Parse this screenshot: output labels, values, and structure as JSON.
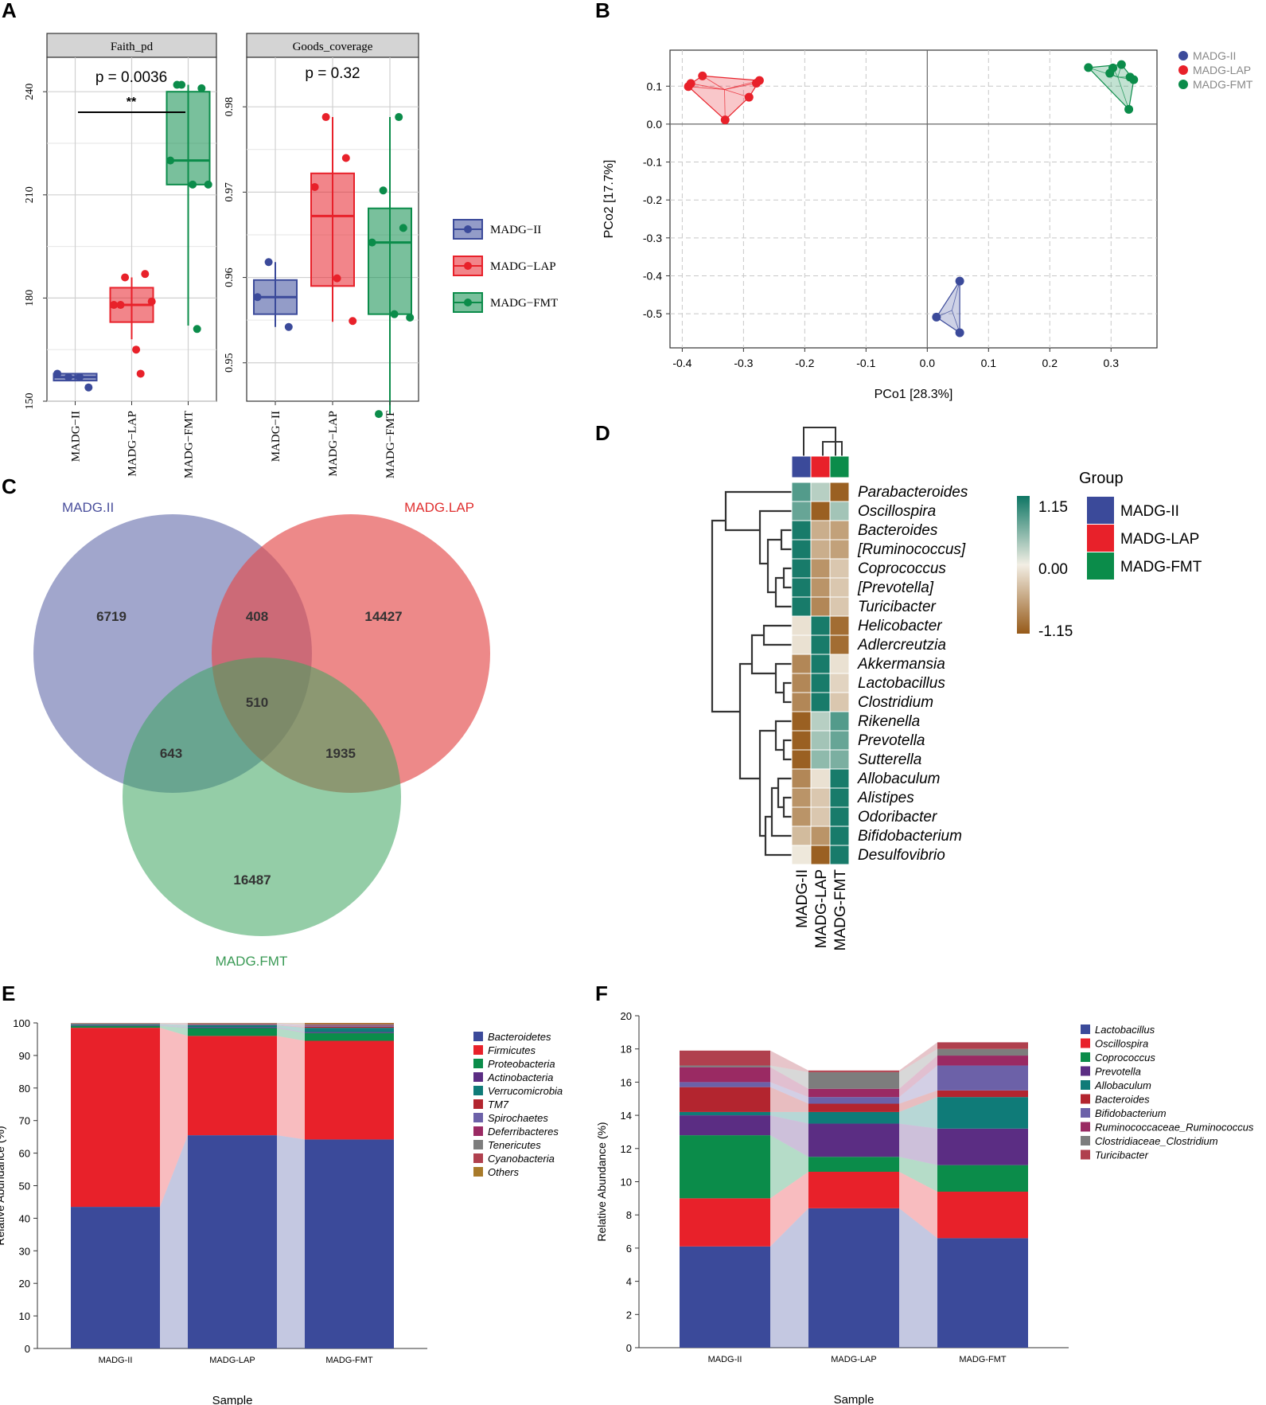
{
  "panels": {
    "A": "A",
    "B": "B",
    "C": "C",
    "D": "D",
    "E": "E",
    "F": "F"
  },
  "colors": {
    "II": "#3b4a9a",
    "LAP": "#e8212a",
    "FMT": "#0b8c4a"
  },
  "chart_data": [
    {
      "id": "A1",
      "type": "box",
      "title": "Faith_pd",
      "categories": [
        "MADG−II",
        "MADG−LAP",
        "MADG−FMT"
      ],
      "ylim": [
        150,
        250
      ],
      "yticks": [
        "150",
        "180",
        "210",
        "240"
      ],
      "yticks_values": [
        150,
        180,
        210,
        240
      ],
      "pvalue": "p = 0.0036",
      "signif": "**",
      "boxes": [
        {
          "q1": 156,
          "median": 157,
          "q3": 158,
          "min": 156,
          "max": 158,
          "points": [
            157,
            154,
            158,
            157
          ]
        },
        {
          "q1": 173,
          "median": 178,
          "q3": 183,
          "min": 168,
          "max": 186,
          "points": [
            186,
            187,
            178,
            165,
            179,
            178,
            158
          ]
        },
        {
          "q1": 213,
          "median": 220,
          "q3": 240,
          "min": 172,
          "max": 242,
          "points": [
            242,
            241,
            220,
            213,
            213,
            242,
            171
          ]
        }
      ]
    },
    {
      "id": "A2",
      "type": "box",
      "title": "Goods_coverage",
      "categories": [
        "MADG−II",
        "MADG−LAP",
        "MADG−FMT"
      ],
      "ylim": [
        0.9455,
        0.9858
      ],
      "yticks": [
        "0.95",
        "0.96",
        "0.97",
        "0.98"
      ],
      "yticks_values": [
        0.95,
        0.96,
        0.97,
        0.98
      ],
      "pvalue": "p = 0.32",
      "boxes": [
        {
          "q1": 0.9557,
          "median": 0.9577,
          "q3": 0.9597,
          "min": 0.9542,
          "max": 0.9618,
          "points": [
            0.9618,
            0.9542,
            0.9577
          ]
        },
        {
          "q1": 0.959,
          "median": 0.9672,
          "q3": 0.9722,
          "min": 0.9548,
          "max": 0.9788,
          "points": [
            0.9788,
            0.974,
            0.9706,
            0.9599,
            0.9549
          ]
        },
        {
          "q1": 0.9557,
          "median": 0.9641,
          "q3": 0.9681,
          "min": 0.944,
          "max": 0.9788,
          "points": [
            0.9702,
            0.9658,
            0.9641,
            0.9557,
            0.9553,
            0.944,
            0.9788
          ]
        }
      ]
    },
    {
      "id": "B",
      "type": "scatter",
      "xlabel": "PCo1 [28.3%]",
      "ylabel": "PCo2 [17.7%]",
      "xlim": [
        -0.42,
        0.375
      ],
      "ylim": [
        -0.59,
        0.195
      ],
      "xticks": [
        "-0.4",
        "-0.3",
        "-0.2",
        "-0.1",
        "0.0",
        "0.1",
        "0.2",
        "0.3"
      ],
      "xticks_values": [
        -0.4,
        -0.3,
        -0.2,
        -0.1,
        0.0,
        0.1,
        0.2,
        0.3
      ],
      "yticks": [
        "0.1",
        "0.0",
        "-0.1",
        "-0.2",
        "-0.3",
        "-0.4",
        "-0.5"
      ],
      "yticks_values": [
        0.1,
        0.0,
        -0.1,
        -0.2,
        -0.3,
        -0.4,
        -0.5
      ],
      "legend": [
        "MADG-II",
        "MADG-LAP",
        "MADG-FMT"
      ],
      "series": [
        {
          "name": "MADG-II",
          "points": [
            [
              0.053,
              -0.414
            ],
            [
              0.015,
              -0.509
            ],
            [
              0.053,
              -0.55
            ]
          ]
        },
        {
          "name": "MADG-LAP",
          "points": [
            [
              -0.39,
              0.099
            ],
            [
              -0.386,
              0.107
            ],
            [
              -0.367,
              0.127
            ],
            [
              -0.33,
              0.011
            ],
            [
              -0.279,
              0.108
            ],
            [
              -0.274,
              0.115
            ],
            [
              -0.291,
              0.071
            ]
          ]
        },
        {
          "name": "MADG-FMT",
          "points": [
            [
              0.263,
              0.149
            ],
            [
              0.298,
              0.134
            ],
            [
              0.303,
              0.148
            ],
            [
              0.317,
              0.157
            ],
            [
              0.331,
              0.124
            ],
            [
              0.337,
              0.117
            ],
            [
              0.329,
              0.039
            ]
          ]
        }
      ]
    },
    {
      "id": "C",
      "type": "venn",
      "sets": [
        "MADG.II",
        "MADG.LAP",
        "MADG.FMT"
      ],
      "values": {
        "only_II": "6719",
        "only_LAP": "14427",
        "only_FMT": "16487",
        "II_LAP": "408",
        "II_FMT": "643",
        "LAP_FMT": "1935",
        "all": "510"
      }
    },
    {
      "id": "D",
      "type": "heatmap",
      "columns": [
        "MADG-II",
        "MADG-LAP",
        "MADG-FMT"
      ],
      "rows": [
        "Parabacteroides",
        "Oscillospira",
        "Bacteroides",
        "[Ruminococcus]",
        "Coprococcus",
        "[Prevotella]",
        "Turicibacter",
        "Helicobacter",
        "Adlercreutzia",
        "Akkermansia",
        "Lactobacillus",
        "Clostridium",
        "Rikenella",
        "Prevotella",
        "Sutterella",
        "Allobaculum",
        "Alistipes",
        "Odoribacter",
        "Bifidobacterium",
        "Desulfovibrio"
      ],
      "values": [
        [
          0.8,
          0.3,
          -1.1
        ],
        [
          0.7,
          -1.1,
          0.4
        ],
        [
          1.1,
          -0.5,
          -0.6
        ],
        [
          1.1,
          -0.5,
          -0.6
        ],
        [
          1.1,
          -0.7,
          -0.3
        ],
        [
          1.1,
          -0.7,
          -0.3
        ],
        [
          1.1,
          -0.8,
          -0.3
        ],
        [
          -0.1,
          1.1,
          -1.0
        ],
        [
          -0.1,
          1.1,
          -1.0
        ],
        [
          -0.8,
          1.1,
          -0.1
        ],
        [
          -0.8,
          1.1,
          -0.2
        ],
        [
          -0.8,
          1.1,
          -0.3
        ],
        [
          -1.1,
          0.3,
          0.8
        ],
        [
          -1.1,
          0.4,
          0.7
        ],
        [
          -1.1,
          0.5,
          0.6
        ],
        [
          -0.8,
          -0.1,
          1.1
        ],
        [
          -0.7,
          -0.3,
          1.1
        ],
        [
          -0.7,
          -0.3,
          1.1
        ],
        [
          -0.4,
          -0.7,
          1.1
        ],
        [
          -0.05,
          -1.1,
          1.1
        ]
      ],
      "legend_title": "Group",
      "scale_labels": [
        "1.15",
        "0.00",
        "-1.15"
      ],
      "scale_values": [
        1.15,
        0.0,
        -1.15
      ]
    },
    {
      "id": "E",
      "type": "stacked-bar",
      "xlabel": "Sample",
      "ylabel": "Relative Abundance (%)",
      "categories": [
        "MADG-II",
        "MADG-LAP",
        "MADG-FMT"
      ],
      "ylim": [
        0,
        100
      ],
      "yticks": [
        "0",
        "10",
        "20",
        "30",
        "40",
        "50",
        "60",
        "70",
        "80",
        "90",
        "100"
      ],
      "yticks_values": [
        0,
        10,
        20,
        30,
        40,
        50,
        60,
        70,
        80,
        90,
        100
      ],
      "series": [
        {
          "name": "Bacteroidetes",
          "color": "#3b4a9a",
          "values": [
            43.5,
            65.5,
            64.2
          ]
        },
        {
          "name": "Firmicutes",
          "color": "#e8212a",
          "values": [
            55.0,
            30.5,
            30.3
          ]
        },
        {
          "name": "Proteobacteria",
          "color": "#0b8c4a",
          "values": [
            0.6,
            2.4,
            2.4
          ]
        },
        {
          "name": "Actinobacteria",
          "color": "#5b2d83",
          "values": [
            0.2,
            0.3,
            0.3
          ]
        },
        {
          "name": "Verrucomicrobia",
          "color": "#0f7b78",
          "values": [
            0.3,
            0.6,
            1.3
          ]
        },
        {
          "name": "TM7",
          "color": "#b3252f",
          "values": [
            0.1,
            0.1,
            0.3
          ]
        },
        {
          "name": "Spirochaetes",
          "color": "#6c61a8",
          "values": [
            0.05,
            0.1,
            0.2
          ]
        },
        {
          "name": "Deferribacteres",
          "color": "#9a2a63",
          "values": [
            0.05,
            0.1,
            0.2
          ]
        },
        {
          "name": "Tenericutes",
          "color": "#7d7d7d",
          "values": [
            0.1,
            0.2,
            0.3
          ]
        },
        {
          "name": "Cyanobacteria",
          "color": "#b0404e",
          "values": [
            0.05,
            0.1,
            0.2
          ]
        },
        {
          "name": "Others",
          "color": "#a87a2a",
          "values": [
            0.05,
            0.1,
            0.3
          ]
        }
      ]
    },
    {
      "id": "F",
      "type": "stacked-bar",
      "xlabel": "Sample",
      "ylabel": "Relative Abundance (%)",
      "categories": [
        "MADG-II",
        "MADG-LAP",
        "MADG-FMT"
      ],
      "ylim": [
        0,
        20
      ],
      "yticks": [
        "0",
        "2",
        "4",
        "6",
        "8",
        "10",
        "12",
        "14",
        "16",
        "18",
        "20"
      ],
      "yticks_values": [
        0,
        2,
        4,
        6,
        8,
        10,
        12,
        14,
        16,
        18,
        20
      ],
      "series": [
        {
          "name": "Lactobacillus",
          "color": "#3b4a9a",
          "values": [
            6.1,
            8.4,
            6.6
          ]
        },
        {
          "name": "Oscillospira",
          "color": "#e8212a",
          "values": [
            2.9,
            2.2,
            2.8
          ]
        },
        {
          "name": "Coprococcus",
          "color": "#0b8c4a",
          "values": [
            3.8,
            0.9,
            1.6
          ]
        },
        {
          "name": "Prevotella",
          "color": "#5b2d83",
          "values": [
            1.2,
            2.0,
            2.2
          ]
        },
        {
          "name": "Allobaculum",
          "color": "#0f7b78",
          "values": [
            0.2,
            0.7,
            1.9
          ]
        },
        {
          "name": "Bacteroides",
          "color": "#b3252f",
          "values": [
            1.5,
            0.5,
            0.4
          ]
        },
        {
          "name": "Bifidobacterium",
          "color": "#6c61a8",
          "values": [
            0.3,
            0.4,
            1.5
          ]
        },
        {
          "name": "Ruminococcaceae_Ruminococcus",
          "color": "#9a2a63",
          "values": [
            0.9,
            0.5,
            0.6
          ]
        },
        {
          "name": "Clostridiaceae_Clostridium",
          "color": "#7d7d7d",
          "values": [
            0.1,
            1.0,
            0.4
          ]
        },
        {
          "name": "Turicibacter",
          "color": "#b0404e",
          "values": [
            0.9,
            0.1,
            0.4
          ]
        }
      ]
    }
  ]
}
